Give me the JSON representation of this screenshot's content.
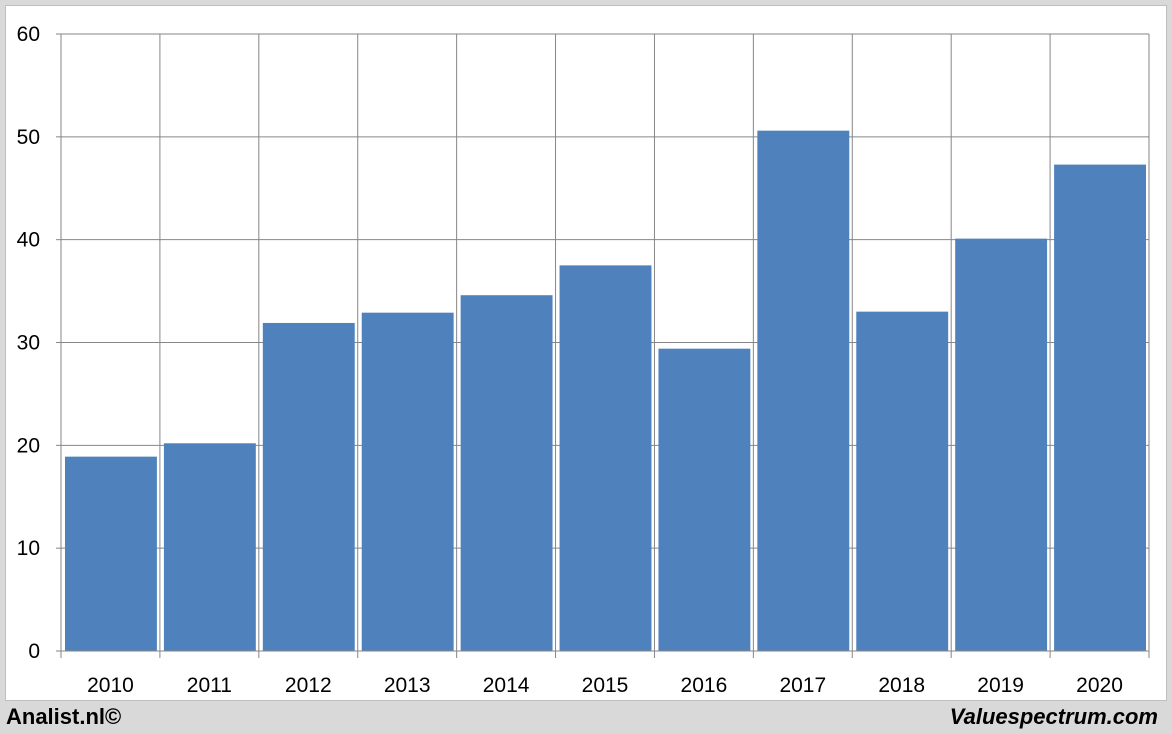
{
  "chart_data": {
    "type": "bar",
    "categories": [
      "2010",
      "2011",
      "2012",
      "2013",
      "2014",
      "2015",
      "2016",
      "2017",
      "2018",
      "2019",
      "2020"
    ],
    "values": [
      18.9,
      20.2,
      31.9,
      32.9,
      34.6,
      37.5,
      29.4,
      50.6,
      33.0,
      40.1,
      47.3
    ],
    "ylim": [
      0,
      60
    ],
    "yticks": [
      0,
      10,
      20,
      30,
      40,
      50,
      60
    ],
    "grid": true,
    "bar_color": "#4f81bd"
  },
  "footer": {
    "left": "Analist.nl©",
    "right": "Valuespectrum.com"
  }
}
